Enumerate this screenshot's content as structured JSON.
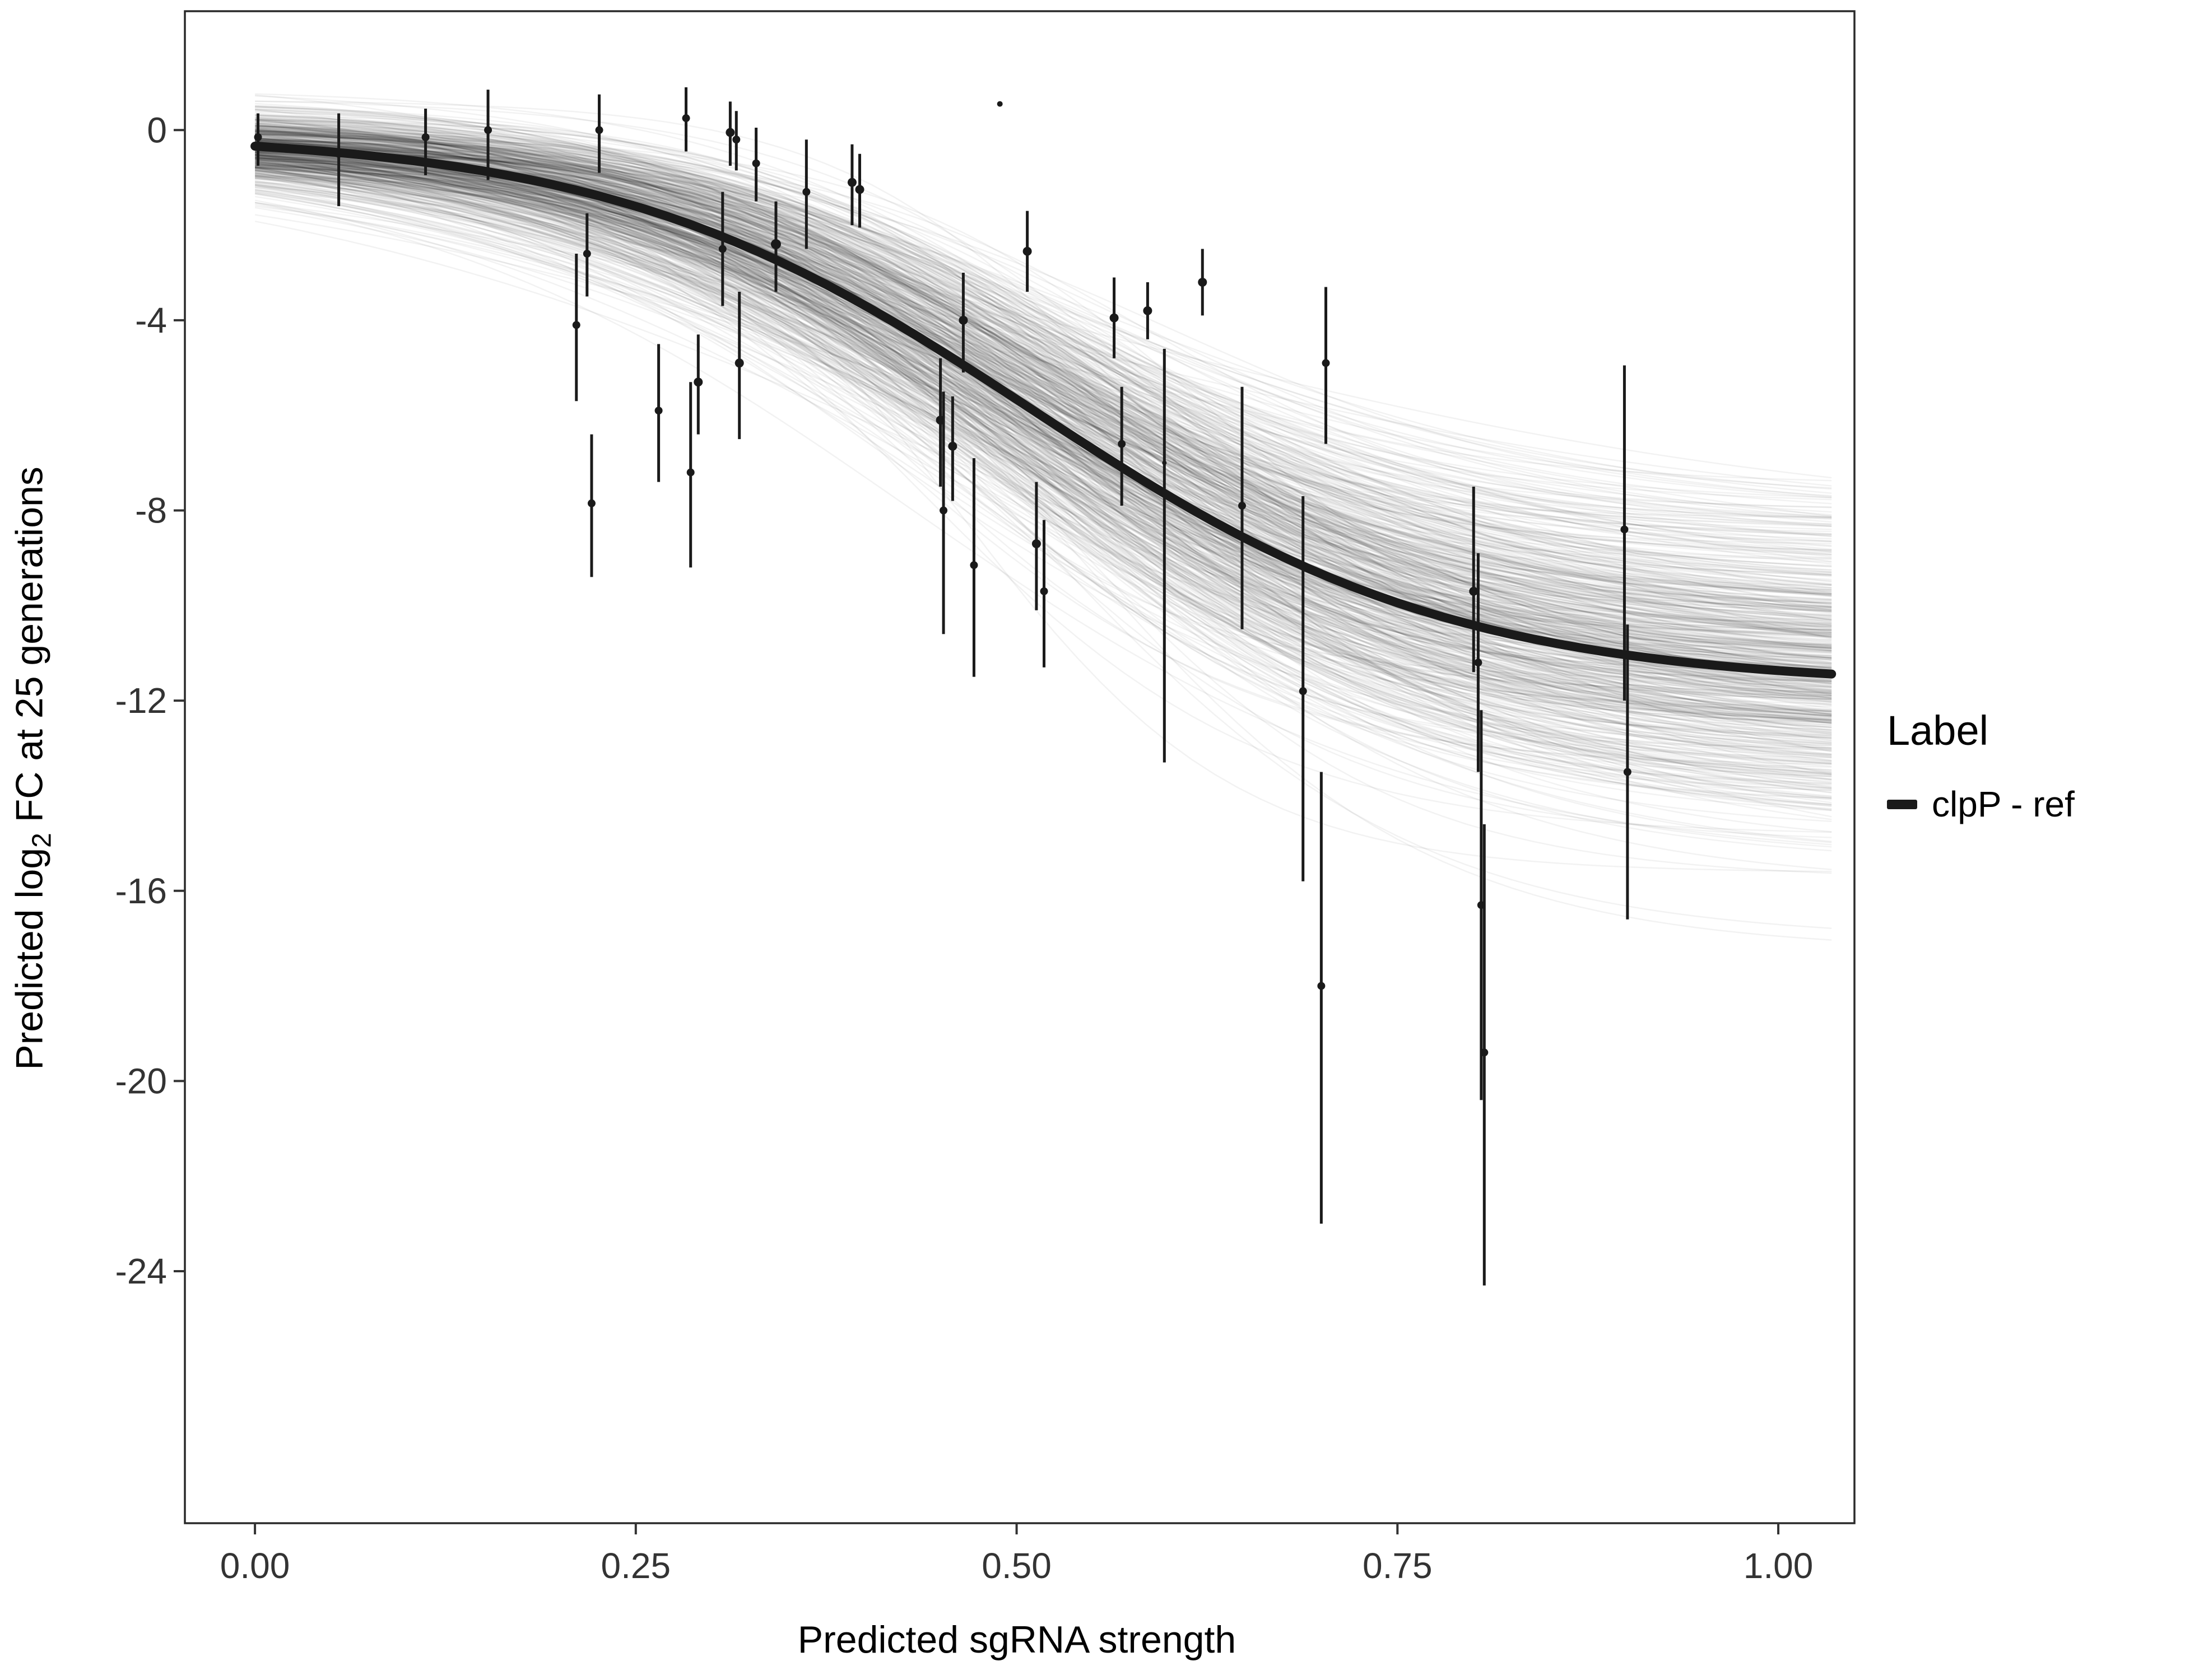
{
  "figure": {
    "background": "#ffffff"
  },
  "chart_data": {
    "type": "line",
    "title": "",
    "xlabel": "Predicted sgRNA strength",
    "ylabel": {
      "pre": "Predicted  log",
      "sub": "2",
      "post": " FC at 25 generations"
    },
    "xlim": [
      -0.046,
      1.05
    ],
    "ylim": [
      -29.3,
      2.5
    ],
    "grid": "off",
    "xticks": {
      "values": [
        0,
        0.25,
        0.5,
        0.75,
        1.0
      ],
      "labels": [
        "0.00",
        "0.25",
        "0.50",
        "0.75",
        "1.00"
      ]
    },
    "yticks": {
      "values": [
        0,
        -4,
        -8,
        -12,
        -16,
        -20,
        -24
      ],
      "labels": [
        "0",
        "-4",
        "-8",
        "-12",
        "-16",
        "-20",
        "-24"
      ]
    },
    "legend": {
      "title": "Label",
      "position": "right",
      "items": [
        {
          "label": "clpP - ref",
          "color": "#1a1a1a"
        }
      ]
    },
    "curve": {
      "model": "logistic",
      "high": -0.05,
      "low": -11.7,
      "x0": 0.51,
      "k": 7.2,
      "color": "#1a1a1a",
      "width": 16,
      "x_range": [
        0,
        1.04
      ]
    },
    "spaghetti": {
      "count": 600,
      "seed": 42,
      "color": "rgba(0,0,0,0.05)",
      "width": 2.5,
      "high_sd": 0.35,
      "low_sd": 1.7,
      "x0_sd": 0.045,
      "k_sd": 1.3
    },
    "points_color": "#1a1a1a",
    "points_note": "each point: [x, y, bar_low, bar_high, dot_radius_px]",
    "points": [
      [
        0.002,
        -0.15,
        -0.75,
        0.35,
        7
      ],
      [
        0.055,
        -0.5,
        -1.6,
        0.35,
        7
      ],
      [
        0.112,
        -0.15,
        -0.95,
        0.45,
        7
      ],
      [
        0.153,
        0.0,
        -1.05,
        0.85,
        7
      ],
      [
        0.211,
        -4.1,
        -5.7,
        -2.6,
        7
      ],
      [
        0.218,
        -2.6,
        -3.5,
        -1.75,
        7
      ],
      [
        0.221,
        -7.85,
        -9.4,
        -6.4,
        7
      ],
      [
        0.226,
        0.0,
        -0.9,
        0.75,
        7
      ],
      [
        0.265,
        -5.9,
        -7.4,
        -4.5,
        7
      ],
      [
        0.283,
        0.25,
        -0.45,
        0.9,
        7
      ],
      [
        0.286,
        -7.2,
        -9.2,
        -5.3,
        7
      ],
      [
        0.291,
        -5.3,
        -6.4,
        -4.3,
        8
      ],
      [
        0.307,
        -2.5,
        -3.7,
        -1.3,
        7
      ],
      [
        0.312,
        -0.05,
        -0.75,
        0.6,
        8
      ],
      [
        0.316,
        -0.2,
        -0.85,
        0.4,
        7
      ],
      [
        0.318,
        -4.9,
        -6.5,
        -3.4,
        8
      ],
      [
        0.329,
        -0.7,
        -1.5,
        0.05,
        7
      ],
      [
        0.342,
        -2.4,
        -3.4,
        -1.5,
        9
      ],
      [
        0.362,
        -1.3,
        -2.5,
        -0.2,
        7
      ],
      [
        0.392,
        -1.1,
        -2.0,
        -0.3,
        8
      ],
      [
        0.397,
        -1.25,
        -2.05,
        -0.5,
        8
      ],
      [
        0.45,
        -6.1,
        -7.5,
        -4.8,
        8
      ],
      [
        0.452,
        -8.0,
        -10.6,
        -5.5,
        7
      ],
      [
        0.458,
        -6.65,
        -7.8,
        -5.6,
        8
      ],
      [
        0.465,
        -4.0,
        -5.1,
        -3.0,
        8
      ],
      [
        0.472,
        -9.15,
        -11.5,
        -6.9,
        7
      ],
      [
        0.489,
        0.55,
        null,
        null,
        5
      ],
      [
        0.507,
        -2.55,
        -3.4,
        -1.7,
        8
      ],
      [
        0.513,
        -8.7,
        -10.1,
        -7.4,
        8
      ],
      [
        0.518,
        -9.7,
        -11.3,
        -8.2,
        7
      ],
      [
        0.564,
        -3.95,
        -4.8,
        -3.1,
        8
      ],
      [
        0.569,
        -6.6,
        -7.9,
        -5.4,
        7
      ],
      [
        0.586,
        -3.8,
        -4.4,
        -3.2,
        8
      ],
      [
        0.597,
        -7.0,
        -13.3,
        -4.6,
        4
      ],
      [
        0.622,
        -3.2,
        -3.9,
        -2.5,
        8
      ],
      [
        0.648,
        -7.9,
        -10.5,
        -5.4,
        7
      ],
      [
        0.688,
        -11.8,
        -15.8,
        -7.7,
        7
      ],
      [
        0.7,
        -18.0,
        -23.0,
        -13.5,
        7
      ],
      [
        0.703,
        -4.9,
        -6.6,
        -3.3,
        7
      ],
      [
        0.8,
        -9.7,
        -11.4,
        -7.5,
        8
      ],
      [
        0.803,
        -11.2,
        -13.5,
        -8.9,
        7
      ],
      [
        0.805,
        -16.3,
        -20.4,
        -12.2,
        7
      ],
      [
        0.807,
        -19.4,
        -24.3,
        -14.6,
        7
      ],
      [
        0.899,
        -8.4,
        -12.0,
        -4.95,
        7
      ],
      [
        0.901,
        -13.5,
        -16.6,
        -10.4,
        7
      ]
    ]
  }
}
